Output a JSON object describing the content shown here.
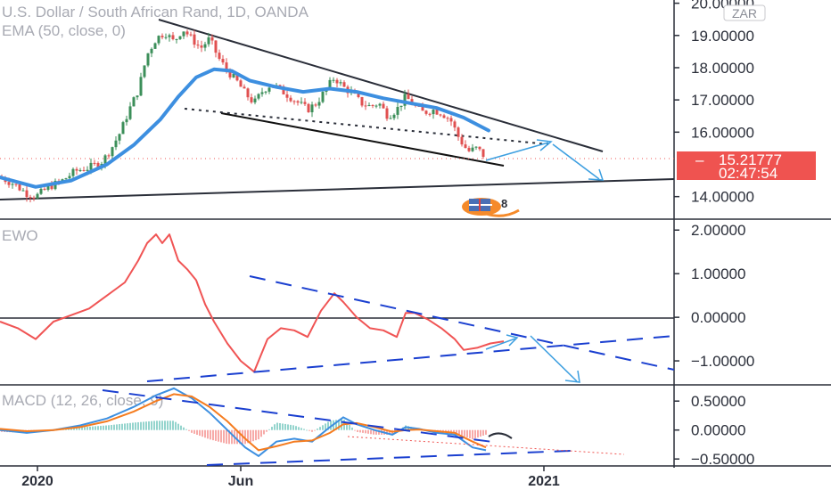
{
  "header": {
    "title": "U.S. Dollar / South African Rand, 1D, OANDA",
    "indicator": "EMA (50, close, 0)",
    "currency_badge": "ZAR"
  },
  "price_tag": {
    "price": "15.21777",
    "countdown": "02:47:54",
    "color": "#ef5350"
  },
  "annotation": {
    "badge_number": "8"
  },
  "colors": {
    "ema": "#3d8fe0",
    "ewo": "#f05454",
    "macd": "#3d8fe0",
    "signal": "#f57c1f",
    "arrow": "#3d9fe0",
    "trendline_main": "#2a2e39",
    "candle_up": "#3c8f5a",
    "candle_down": "#e05050",
    "grid": "#2a2e39",
    "axis_text": "#2a2e39",
    "title_text": "#a8aab3"
  },
  "chart_data": [
    {
      "type": "candlestick",
      "panel": "price",
      "title": "U.S. Dollar / South African Rand, 1D, OANDA",
      "y_ticks": [
        "20.00000",
        "19.00000",
        "18.00000",
        "17.00000",
        "16.00000",
        "14.00000"
      ],
      "y_tick_values": [
        20,
        19,
        18,
        17,
        16,
        14
      ],
      "ylim": [
        13.3,
        20.1
      ],
      "last_price": 15.21777,
      "series": [
        {
          "name": "price",
          "points": [
            [
              0,
              14.6
            ],
            [
              15,
              14.4
            ],
            [
              30,
              14.1
            ],
            [
              40,
              14.0
            ],
            [
              55,
              14.3
            ],
            [
              70,
              14.5
            ],
            [
              85,
              14.8
            ],
            [
              100,
              14.9
            ],
            [
              115,
              15.1
            ],
            [
              125,
              15.5
            ],
            [
              135,
              16.0
            ],
            [
              145,
              16.7
            ],
            [
              155,
              17.3
            ],
            [
              165,
              18.4
            ],
            [
              175,
              18.9
            ],
            [
              185,
              19.1
            ],
            [
              195,
              18.8
            ],
            [
              205,
              19.2
            ],
            [
              215,
              18.9
            ],
            [
              225,
              18.6
            ],
            [
              235,
              18.9
            ],
            [
              245,
              18.3
            ],
            [
              255,
              17.9
            ],
            [
              265,
              17.6
            ],
            [
              275,
              17.2
            ],
            [
              285,
              16.9
            ],
            [
              295,
              17.3
            ],
            [
              305,
              17.5
            ],
            [
              315,
              17.3
            ],
            [
              325,
              17.1
            ],
            [
              335,
              16.9
            ],
            [
              345,
              16.7
            ],
            [
              355,
              16.9
            ],
            [
              365,
              17.3
            ],
            [
              375,
              17.7
            ],
            [
              385,
              17.4
            ],
            [
              395,
              17.2
            ],
            [
              405,
              16.9
            ],
            [
              415,
              16.8
            ],
            [
              425,
              16.9
            ],
            [
              435,
              16.5
            ],
            [
              445,
              16.7
            ],
            [
              455,
              17.1
            ],
            [
              465,
              16.8
            ],
            [
              475,
              16.6
            ],
            [
              485,
              16.7
            ],
            [
              495,
              16.6
            ],
            [
              505,
              16.4
            ],
            [
              515,
              15.8
            ],
            [
              525,
              15.4
            ],
            [
              535,
              15.5
            ],
            [
              545,
              15.2
            ]
          ]
        },
        {
          "name": "EMA (50, close, 0)",
          "points": [
            [
              0,
              14.6
            ],
            [
              40,
              14.3
            ],
            [
              80,
              14.5
            ],
            [
              120,
              15.0
            ],
            [
              150,
              15.6
            ],
            [
              180,
              16.4
            ],
            [
              200,
              17.1
            ],
            [
              220,
              17.7
            ],
            [
              240,
              17.95
            ],
            [
              260,
              17.9
            ],
            [
              280,
              17.6
            ],
            [
              310,
              17.4
            ],
            [
              340,
              17.25
            ],
            [
              370,
              17.35
            ],
            [
              400,
              17.25
            ],
            [
              430,
              17.05
            ],
            [
              460,
              16.9
            ],
            [
              490,
              16.75
            ],
            [
              520,
              16.45
            ],
            [
              548,
              16.05
            ]
          ]
        }
      ]
    },
    {
      "type": "line",
      "panel": "EWO",
      "title": "EWO",
      "y_ticks": [
        "2.00000",
        "1.00000",
        "0.00000",
        "−1.00000"
      ],
      "y_tick_values": [
        2,
        1,
        0,
        -1
      ],
      "ylim": [
        -1.55,
        2.25
      ],
      "series": [
        {
          "name": "EWO",
          "points": [
            [
              0,
              -0.1
            ],
            [
              20,
              -0.25
            ],
            [
              40,
              -0.5
            ],
            [
              60,
              -0.1
            ],
            [
              80,
              0.05
            ],
            [
              100,
              0.2
            ],
            [
              120,
              0.5
            ],
            [
              140,
              0.8
            ],
            [
              155,
              1.3
            ],
            [
              165,
              1.7
            ],
            [
              175,
              1.9
            ],
            [
              182,
              1.7
            ],
            [
              190,
              1.9
            ],
            [
              200,
              1.3
            ],
            [
              210,
              1.1
            ],
            [
              220,
              0.85
            ],
            [
              230,
              0.3
            ],
            [
              240,
              -0.1
            ],
            [
              255,
              -0.6
            ],
            [
              270,
              -1.0
            ],
            [
              285,
              -1.25
            ],
            [
              300,
              -0.5
            ],
            [
              315,
              -0.25
            ],
            [
              330,
              -0.3
            ],
            [
              345,
              -0.45
            ],
            [
              360,
              0.15
            ],
            [
              375,
              0.55
            ],
            [
              385,
              0.35
            ],
            [
              400,
              0.0
            ],
            [
              415,
              -0.25
            ],
            [
              430,
              -0.3
            ],
            [
              445,
              -0.45
            ],
            [
              455,
              0.1
            ],
            [
              465,
              0.1
            ],
            [
              480,
              -0.05
            ],
            [
              495,
              -0.25
            ],
            [
              510,
              -0.5
            ],
            [
              520,
              -0.75
            ],
            [
              535,
              -0.7
            ],
            [
              550,
              -0.6
            ],
            [
              565,
              -0.55
            ]
          ]
        }
      ]
    },
    {
      "type": "line",
      "panel": "MACD",
      "title": "MACD (12, 26, close, 9)",
      "y_ticks": [
        "0.50000",
        "0.00000",
        "−0.50000"
      ],
      "y_tick_values": [
        0.5,
        0,
        -0.5
      ],
      "ylim": [
        -0.62,
        0.78
      ],
      "series": [
        {
          "name": "MACD",
          "points": [
            [
              0,
              0.0
            ],
            [
              30,
              -0.05
            ],
            [
              60,
              0.0
            ],
            [
              90,
              0.08
            ],
            [
              120,
              0.2
            ],
            [
              150,
              0.4
            ],
            [
              175,
              0.6
            ],
            [
              195,
              0.72
            ],
            [
              215,
              0.55
            ],
            [
              235,
              0.3
            ],
            [
              255,
              0.0
            ],
            [
              275,
              -0.3
            ],
            [
              290,
              -0.45
            ],
            [
              310,
              -0.2
            ],
            [
              330,
              -0.15
            ],
            [
              350,
              -0.2
            ],
            [
              370,
              0.05
            ],
            [
              385,
              0.22
            ],
            [
              400,
              0.1
            ],
            [
              420,
              0.0
            ],
            [
              440,
              -0.08
            ],
            [
              455,
              0.05
            ],
            [
              470,
              0.02
            ],
            [
              490,
              -0.05
            ],
            [
              510,
              -0.08
            ],
            [
              530,
              -0.3
            ],
            [
              545,
              -0.35
            ]
          ]
        },
        {
          "name": "Signal",
          "points": [
            [
              0,
              0.02
            ],
            [
              30,
              -0.02
            ],
            [
              60,
              0.0
            ],
            [
              90,
              0.05
            ],
            [
              120,
              0.15
            ],
            [
              150,
              0.32
            ],
            [
              175,
              0.5
            ],
            [
              195,
              0.62
            ],
            [
              215,
              0.58
            ],
            [
              235,
              0.4
            ],
            [
              255,
              0.15
            ],
            [
              275,
              -0.15
            ],
            [
              290,
              -0.35
            ],
            [
              310,
              -0.28
            ],
            [
              330,
              -0.2
            ],
            [
              350,
              -0.18
            ],
            [
              370,
              -0.05
            ],
            [
              385,
              0.1
            ],
            [
              400,
              0.12
            ],
            [
              420,
              0.05
            ],
            [
              440,
              -0.03
            ],
            [
              455,
              0.0
            ],
            [
              470,
              0.01
            ],
            [
              490,
              -0.02
            ],
            [
              510,
              -0.05
            ],
            [
              530,
              -0.2
            ],
            [
              545,
              -0.3
            ]
          ]
        }
      ]
    }
  ],
  "x_axis": {
    "labels": [
      "2020",
      "Jun",
      "2021"
    ]
  }
}
